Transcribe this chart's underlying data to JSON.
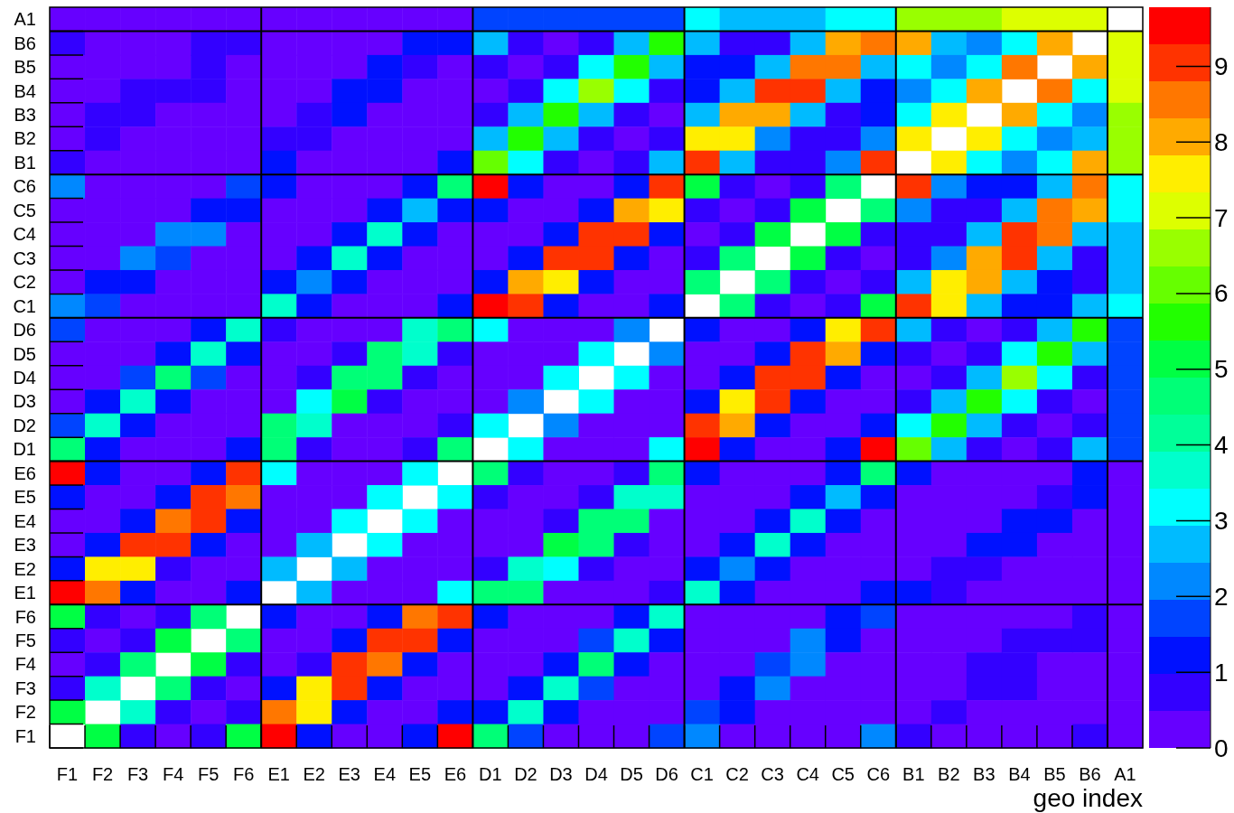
{
  "chart_data": {
    "type": "heatmap",
    "xlabel": "geo index",
    "categories": [
      "F1",
      "F2",
      "F3",
      "F4",
      "F5",
      "F6",
      "E1",
      "E2",
      "E3",
      "E4",
      "E5",
      "E6",
      "D1",
      "D2",
      "D3",
      "D4",
      "D5",
      "D6",
      "C1",
      "C2",
      "C3",
      "C4",
      "C5",
      "C6",
      "B1",
      "B2",
      "B3",
      "B4",
      "B5",
      "B6",
      "A1"
    ],
    "y_categories": [
      "A1",
      "B6",
      "B5",
      "B4",
      "B3",
      "B2",
      "B1",
      "C6",
      "C5",
      "C4",
      "C3",
      "C2",
      "C1",
      "D6",
      "D5",
      "D4",
      "D3",
      "D2",
      "D1",
      "E6",
      "E5",
      "E4",
      "E3",
      "E2",
      "E1",
      "F6",
      "F5",
      "F4",
      "F3",
      "F2",
      "F1"
    ],
    "clim": [
      0,
      9.78
    ],
    "cticks": [
      0,
      1,
      2,
      3,
      4,
      5,
      6,
      7,
      8,
      9
    ],
    "cells": [
      [
        0.2,
        0.2,
        0.2,
        0.2,
        0.2,
        0.2,
        0.2,
        0.2,
        0.2,
        0.2,
        0.2,
        0.2,
        1.7,
        1.7,
        1.7,
        1.7,
        1.7,
        1.7,
        3.2,
        2.7,
        2.7,
        2.7,
        3.2,
        3.2,
        6.6,
        6.6,
        6.6,
        7.1,
        7.1,
        7.1,
        null
      ],
      [
        0.7,
        0.2,
        0.2,
        0.2,
        0.7,
        0.7,
        0.2,
        0.2,
        0.2,
        0.2,
        1.2,
        1.2,
        2.7,
        0.7,
        0.2,
        0.7,
        2.7,
        5.6,
        2.7,
        0.7,
        0.7,
        2.7,
        8.1,
        8.6,
        8.1,
        2.7,
        2.2,
        3.2,
        8.1,
        null,
        7.1
      ],
      [
        0.2,
        0.2,
        0.2,
        0.2,
        0.7,
        0.2,
        0.2,
        0.2,
        0.2,
        1.2,
        0.7,
        0.2,
        0.7,
        0.2,
        0.7,
        3.2,
        5.6,
        2.7,
        1.2,
        1.2,
        2.7,
        8.6,
        8.6,
        2.7,
        3.2,
        2.2,
        3.2,
        8.6,
        null,
        8.1,
        7.1
      ],
      [
        0.2,
        0.2,
        0.7,
        0.7,
        0.7,
        0.2,
        0.2,
        0.2,
        1.2,
        1.2,
        0.2,
        0.2,
        0.2,
        0.7,
        3.2,
        6.6,
        3.2,
        0.7,
        1.2,
        2.7,
        9.0,
        9.0,
        2.7,
        1.2,
        2.2,
        3.2,
        8.1,
        null,
        8.6,
        3.2,
        7.1
      ],
      [
        0.2,
        0.7,
        0.7,
        0.2,
        0.2,
        0.2,
        0.2,
        0.7,
        1.2,
        0.2,
        0.2,
        0.2,
        0.7,
        2.7,
        5.6,
        2.7,
        0.7,
        0.2,
        2.7,
        8.1,
        8.1,
        2.7,
        0.7,
        1.2,
        3.2,
        7.6,
        null,
        8.1,
        3.2,
        2.2,
        6.6
      ],
      [
        0.2,
        0.7,
        0.2,
        0.2,
        0.2,
        0.2,
        0.7,
        0.7,
        0.2,
        0.2,
        0.2,
        0.2,
        2.7,
        5.6,
        2.7,
        0.7,
        0.2,
        0.7,
        7.6,
        7.6,
        2.2,
        0.7,
        0.7,
        2.2,
        7.6,
        null,
        7.6,
        3.2,
        2.2,
        2.7,
        6.6
      ],
      [
        0.7,
        0.2,
        0.2,
        0.2,
        0.2,
        0.2,
        1.2,
        0.2,
        0.2,
        0.2,
        0.2,
        1.2,
        6.1,
        3.2,
        0.7,
        0.2,
        0.7,
        2.7,
        9.0,
        2.7,
        0.7,
        0.7,
        2.2,
        9.0,
        null,
        7.6,
        3.2,
        2.2,
        3.2,
        8.1,
        6.6
      ],
      [
        2.2,
        0.2,
        0.2,
        0.2,
        0.2,
        1.7,
        1.2,
        0.2,
        0.2,
        0.2,
        1.2,
        4.6,
        9.5,
        1.2,
        0.2,
        0.2,
        1.2,
        9.0,
        5.1,
        0.7,
        0.2,
        0.7,
        4.6,
        null,
        9.0,
        2.2,
        1.2,
        1.2,
        2.7,
        8.6,
        3.2
      ],
      [
        0.2,
        0.2,
        0.2,
        0.2,
        1.2,
        1.2,
        0.2,
        0.2,
        0.2,
        1.2,
        2.7,
        1.2,
        1.2,
        0.2,
        0.2,
        1.2,
        8.1,
        7.6,
        0.7,
        0.2,
        0.7,
        5.1,
        null,
        4.6,
        2.2,
        0.7,
        0.7,
        2.7,
        8.6,
        8.1,
        3.2
      ],
      [
        0.2,
        0.2,
        0.2,
        2.2,
        2.2,
        0.2,
        0.2,
        0.2,
        1.2,
        3.7,
        1.2,
        0.2,
        0.2,
        0.2,
        1.2,
        9.0,
        9.0,
        1.2,
        0.2,
        0.7,
        5.1,
        null,
        5.1,
        0.7,
        0.7,
        0.7,
        2.7,
        9.0,
        8.6,
        2.7,
        2.7
      ],
      [
        0.2,
        0.2,
        2.2,
        1.7,
        0.2,
        0.2,
        0.2,
        1.2,
        3.7,
        1.2,
        0.2,
        0.2,
        0.2,
        1.2,
        9.0,
        9.0,
        1.2,
        0.2,
        0.7,
        4.6,
        null,
        5.1,
        0.7,
        0.2,
        0.7,
        2.2,
        8.1,
        9.0,
        2.7,
        0.7,
        2.7
      ],
      [
        0.2,
        1.2,
        1.2,
        0.2,
        0.2,
        0.2,
        1.2,
        2.2,
        1.2,
        0.2,
        0.2,
        0.2,
        1.2,
        8.1,
        7.6,
        1.2,
        0.2,
        0.2,
        4.6,
        null,
        4.6,
        0.7,
        0.2,
        0.7,
        2.7,
        7.6,
        8.1,
        2.7,
        1.2,
        0.7,
        2.7
      ],
      [
        2.2,
        1.7,
        0.2,
        0.2,
        0.2,
        0.2,
        3.7,
        1.2,
        0.2,
        0.2,
        0.2,
        1.2,
        9.5,
        9.0,
        1.2,
        0.2,
        0.2,
        1.2,
        null,
        4.6,
        0.7,
        0.2,
        0.7,
        5.1,
        9.0,
        7.6,
        2.7,
        1.2,
        1.2,
        2.7,
        3.2
      ],
      [
        1.7,
        0.2,
        0.2,
        0.2,
        1.2,
        3.7,
        0.7,
        0.2,
        0.2,
        0.2,
        3.7,
        4.6,
        3.2,
        0.2,
        0.2,
        0.2,
        2.2,
        null,
        1.2,
        0.2,
        0.2,
        1.2,
        7.6,
        9.0,
        2.7,
        0.7,
        0.2,
        0.7,
        2.7,
        5.6,
        1.7
      ],
      [
        0.2,
        0.2,
        0.2,
        1.2,
        3.7,
        1.2,
        0.2,
        0.2,
        0.7,
        4.6,
        3.7,
        0.7,
        0.2,
        0.2,
        0.2,
        3.2,
        null,
        2.2,
        0.2,
        0.2,
        1.2,
        9.0,
        8.1,
        1.2,
        0.7,
        0.2,
        0.7,
        3.2,
        5.6,
        2.7,
        1.7
      ],
      [
        0.2,
        0.2,
        1.7,
        4.6,
        1.7,
        0.2,
        0.2,
        0.7,
        4.6,
        4.6,
        0.7,
        0.2,
        0.2,
        0.2,
        3.2,
        null,
        3.2,
        0.2,
        0.2,
        1.2,
        9.0,
        9.0,
        1.2,
        0.2,
        0.2,
        0.7,
        2.7,
        6.6,
        3.2,
        0.7,
        1.7
      ],
      [
        0.2,
        1.2,
        3.7,
        1.2,
        0.2,
        0.2,
        0.2,
        3.2,
        5.1,
        0.7,
        0.2,
        0.2,
        0.2,
        2.2,
        null,
        3.2,
        0.2,
        0.2,
        1.2,
        7.6,
        9.0,
        1.2,
        0.2,
        0.2,
        0.7,
        2.7,
        5.6,
        3.2,
        0.7,
        0.2,
        1.7
      ],
      [
        1.7,
        3.7,
        1.2,
        0.2,
        0.2,
        0.2,
        4.6,
        3.7,
        0.2,
        0.2,
        0.2,
        0.7,
        3.2,
        null,
        2.2,
        0.2,
        0.2,
        0.2,
        9.0,
        8.1,
        1.2,
        0.2,
        0.2,
        1.2,
        3.2,
        5.6,
        2.7,
        0.7,
        0.2,
        0.7,
        1.7
      ],
      [
        4.6,
        1.2,
        0.2,
        0.2,
        0.2,
        1.2,
        4.6,
        0.7,
        0.2,
        0.2,
        0.7,
        4.6,
        null,
        3.2,
        0.2,
        0.2,
        0.2,
        3.2,
        9.5,
        1.2,
        0.2,
        0.2,
        1.2,
        9.5,
        6.1,
        2.7,
        0.7,
        0.2,
        0.7,
        2.7,
        1.7
      ],
      [
        9.5,
        1.2,
        0.2,
        0.2,
        1.2,
        9.0,
        3.2,
        0.2,
        0.2,
        0.2,
        3.2,
        null,
        4.6,
        0.7,
        0.2,
        0.2,
        0.7,
        4.6,
        1.2,
        0.2,
        0.2,
        0.2,
        1.2,
        4.6,
        1.2,
        0.2,
        0.2,
        0.2,
        0.2,
        1.2,
        0.2
      ],
      [
        1.2,
        0.2,
        0.2,
        1.2,
        9.0,
        8.6,
        0.2,
        0.2,
        0.2,
        3.2,
        null,
        3.2,
        0.7,
        0.2,
        0.2,
        0.7,
        3.7,
        3.7,
        0.2,
        0.2,
        0.2,
        1.2,
        2.7,
        1.2,
        0.2,
        0.2,
        0.2,
        0.2,
        0.7,
        1.2,
        0.2
      ],
      [
        0.2,
        0.2,
        1.2,
        8.6,
        9.0,
        1.2,
        0.2,
        0.2,
        3.2,
        null,
        3.2,
        0.2,
        0.2,
        0.2,
        0.7,
        4.6,
        4.6,
        0.2,
        0.2,
        0.2,
        1.2,
        3.7,
        1.2,
        0.2,
        0.2,
        0.2,
        0.2,
        1.2,
        1.2,
        0.2,
        0.2
      ],
      [
        0.2,
        1.2,
        9.0,
        9.0,
        1.2,
        0.2,
        0.2,
        2.7,
        null,
        3.2,
        0.2,
        0.2,
        0.2,
        0.2,
        5.1,
        4.6,
        0.7,
        0.2,
        0.2,
        1.2,
        3.7,
        1.2,
        0.2,
        0.2,
        0.2,
        0.2,
        1.2,
        1.2,
        0.2,
        0.2,
        0.2
      ],
      [
        1.2,
        7.6,
        7.6,
        0.7,
        0.2,
        0.2,
        2.7,
        null,
        2.7,
        0.2,
        0.2,
        0.2,
        0.7,
        3.7,
        3.2,
        0.7,
        0.2,
        0.2,
        1.2,
        2.2,
        1.2,
        0.2,
        0.2,
        0.2,
        0.2,
        0.7,
        0.7,
        0.2,
        0.2,
        0.2,
        0.2
      ],
      [
        9.5,
        8.6,
        1.2,
        0.2,
        0.2,
        1.2,
        null,
        2.7,
        0.2,
        0.2,
        0.2,
        3.2,
        4.6,
        4.6,
        0.2,
        0.2,
        0.2,
        0.7,
        3.7,
        1.2,
        0.2,
        0.2,
        0.2,
        1.2,
        1.2,
        0.7,
        0.2,
        0.2,
        0.2,
        0.2,
        0.2
      ],
      [
        5.1,
        0.7,
        0.2,
        0.7,
        4.6,
        null,
        1.2,
        0.2,
        0.2,
        1.2,
        8.6,
        9.0,
        1.2,
        0.2,
        0.2,
        0.2,
        1.2,
        3.7,
        0.2,
        0.2,
        0.2,
        0.2,
        1.2,
        1.7,
        0.2,
        0.2,
        0.2,
        0.2,
        0.2,
        0.7,
        0.2
      ],
      [
        0.7,
        0.2,
        0.7,
        5.1,
        null,
        4.6,
        0.2,
        0.2,
        1.2,
        9.0,
        9.0,
        1.2,
        0.2,
        0.2,
        0.2,
        1.7,
        3.7,
        1.2,
        0.2,
        0.2,
        0.2,
        2.2,
        1.2,
        0.2,
        0.2,
        0.2,
        0.2,
        0.7,
        0.7,
        0.7,
        0.2
      ],
      [
        0.2,
        0.7,
        4.6,
        null,
        5.1,
        0.7,
        0.2,
        0.7,
        9.0,
        8.6,
        1.2,
        0.2,
        0.2,
        0.2,
        1.2,
        4.6,
        1.2,
        0.2,
        0.2,
        0.2,
        1.7,
        2.2,
        0.2,
        0.2,
        0.2,
        0.2,
        0.7,
        0.7,
        0.2,
        0.2,
        0.2
      ],
      [
        0.7,
        3.7,
        null,
        4.6,
        0.7,
        0.2,
        1.2,
        7.6,
        9.0,
        1.2,
        0.2,
        0.2,
        0.2,
        1.2,
        3.7,
        1.7,
        0.2,
        0.2,
        0.2,
        1.2,
        2.2,
        0.2,
        0.2,
        0.2,
        0.2,
        0.2,
        0.7,
        0.7,
        0.2,
        0.2,
        0.2
      ],
      [
        5.1,
        null,
        3.7,
        0.7,
        0.2,
        0.7,
        8.6,
        7.6,
        1.2,
        0.2,
        0.2,
        1.2,
        1.2,
        3.7,
        1.2,
        0.2,
        0.2,
        0.2,
        1.7,
        1.2,
        0.2,
        0.2,
        0.2,
        0.2,
        0.2,
        0.7,
        0.2,
        0.2,
        0.2,
        0.2,
        0.2
      ],
      [
        null,
        5.1,
        0.7,
        0.2,
        0.7,
        5.1,
        9.5,
        1.2,
        0.2,
        0.2,
        1.2,
        9.5,
        4.6,
        1.7,
        0.2,
        0.2,
        0.2,
        1.7,
        2.2,
        0.2,
        0.2,
        0.2,
        0.2,
        2.2,
        0.7,
        0.2,
        0.2,
        0.2,
        0.2,
        0.7,
        0.2
      ]
    ]
  }
}
